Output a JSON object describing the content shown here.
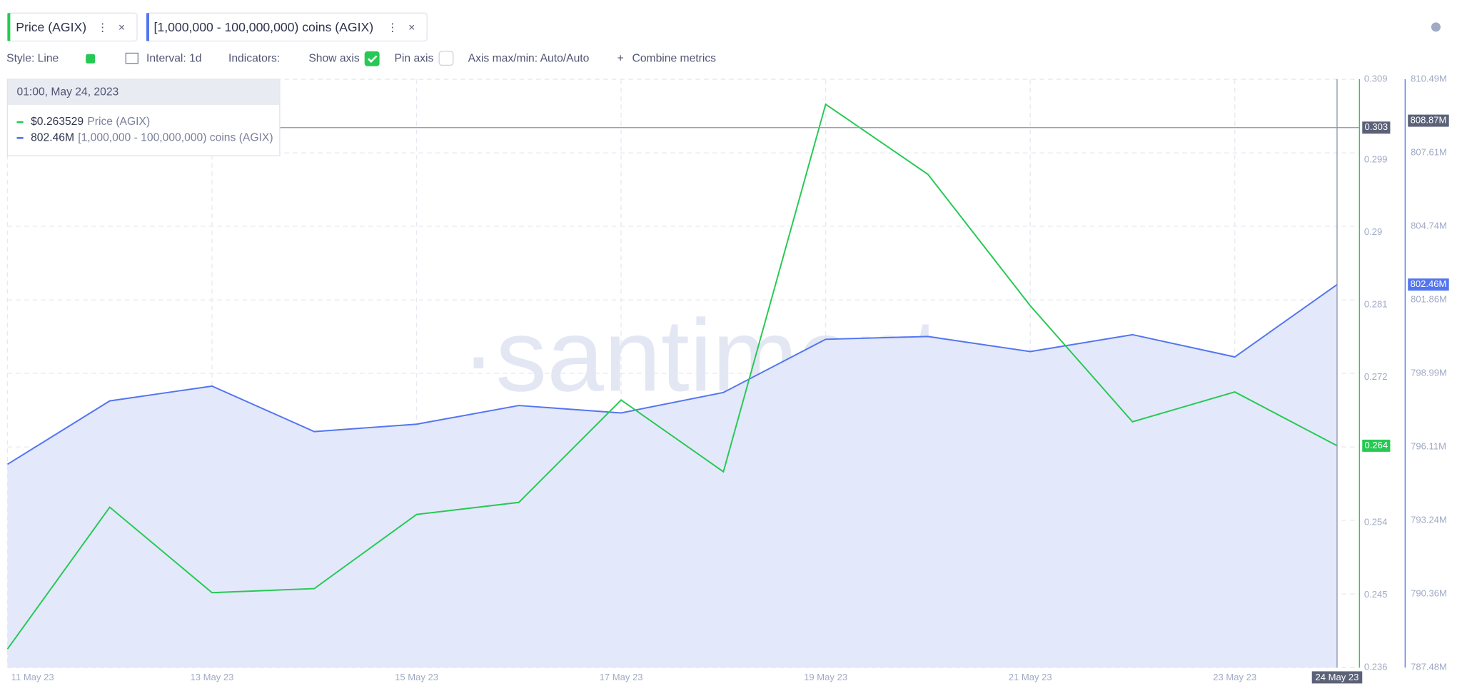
{
  "toolbar": {
    "tabs": [
      "Price (AGIX)",
      "[1,000,000 - 100,000,000) coins (AGIX)"
    ],
    "controls": [
      "Style: Line",
      "Interval: 1d",
      "Indicators:",
      "Show axis",
      "Pin axis",
      "Axis max/min: Auto/Auto",
      "Combine metrics"
    ]
  },
  "watermark": "·santiment·",
  "tooltip": {
    "date": "01:00, May 24, 2023",
    "items": [
      {
        "value_label": "$0.263529",
        "name": "Price (AGIX)"
      },
      {
        "value_label": "802.46M",
        "name": "[1,000,000 - 100,000,000) coins (AGIX)"
      }
    ]
  },
  "chart_data": {
    "type": "line",
    "x": [
      "11 May 23",
      null,
      "13 May 23",
      null,
      "15 May 23",
      null,
      "17 May 23",
      null,
      "19 May 23",
      null,
      "21 May 23",
      null,
      "23 May 23",
      "24 May 23"
    ],
    "series": [
      {
        "name": "Price (AGIX)",
        "color": "#26c953",
        "values": [
          0.2383,
          0.2559,
          0.2453,
          0.2458,
          0.255,
          0.2565,
          0.2692,
          0.2603,
          0.3059,
          0.2972,
          0.2809,
          0.2665,
          0.2702,
          0.263529
        ],
        "last_label": "0.264"
      },
      {
        "name": "[1,000,000 - 100,000,000) coins (AGIX)",
        "color": "#5275f0",
        "axis": "y2",
        "area": true,
        "values": [
          795.43,
          797.91,
          798.49,
          796.71,
          797.0,
          797.73,
          797.44,
          798.24,
          800.32,
          800.43,
          799.84,
          800.5,
          799.63,
          802.46
        ],
        "last_label": "802.46M"
      }
    ],
    "ylim": [
      0.236,
      0.309
    ],
    "yticks": [
      0.236,
      0.245,
      0.254,
      0.272,
      0.281,
      0.29,
      0.299,
      0.309
    ],
    "y2lim": [
      787.48,
      810.49
    ],
    "y2ticks": [
      {
        "value": 787.48,
        "label": "787.48M"
      },
      {
        "value": 790.36,
        "label": "790.36M"
      },
      {
        "value": 793.24,
        "label": "793.24M"
      },
      {
        "value": 796.11,
        "label": "796.11M"
      },
      {
        "value": 798.99,
        "label": "798.99M"
      },
      {
        "value": 801.86,
        "label": "801.86M"
      },
      {
        "value": 804.74,
        "label": "804.74M"
      },
      {
        "value": 807.61,
        "label": "807.61M"
      },
      {
        "value": 810.49,
        "label": "810.49M"
      }
    ],
    "grid": true,
    "crosshair": {
      "value": 0.303,
      "y2": {
        "value": 808.87,
        "label": "808.87M"
      }
    }
  }
}
